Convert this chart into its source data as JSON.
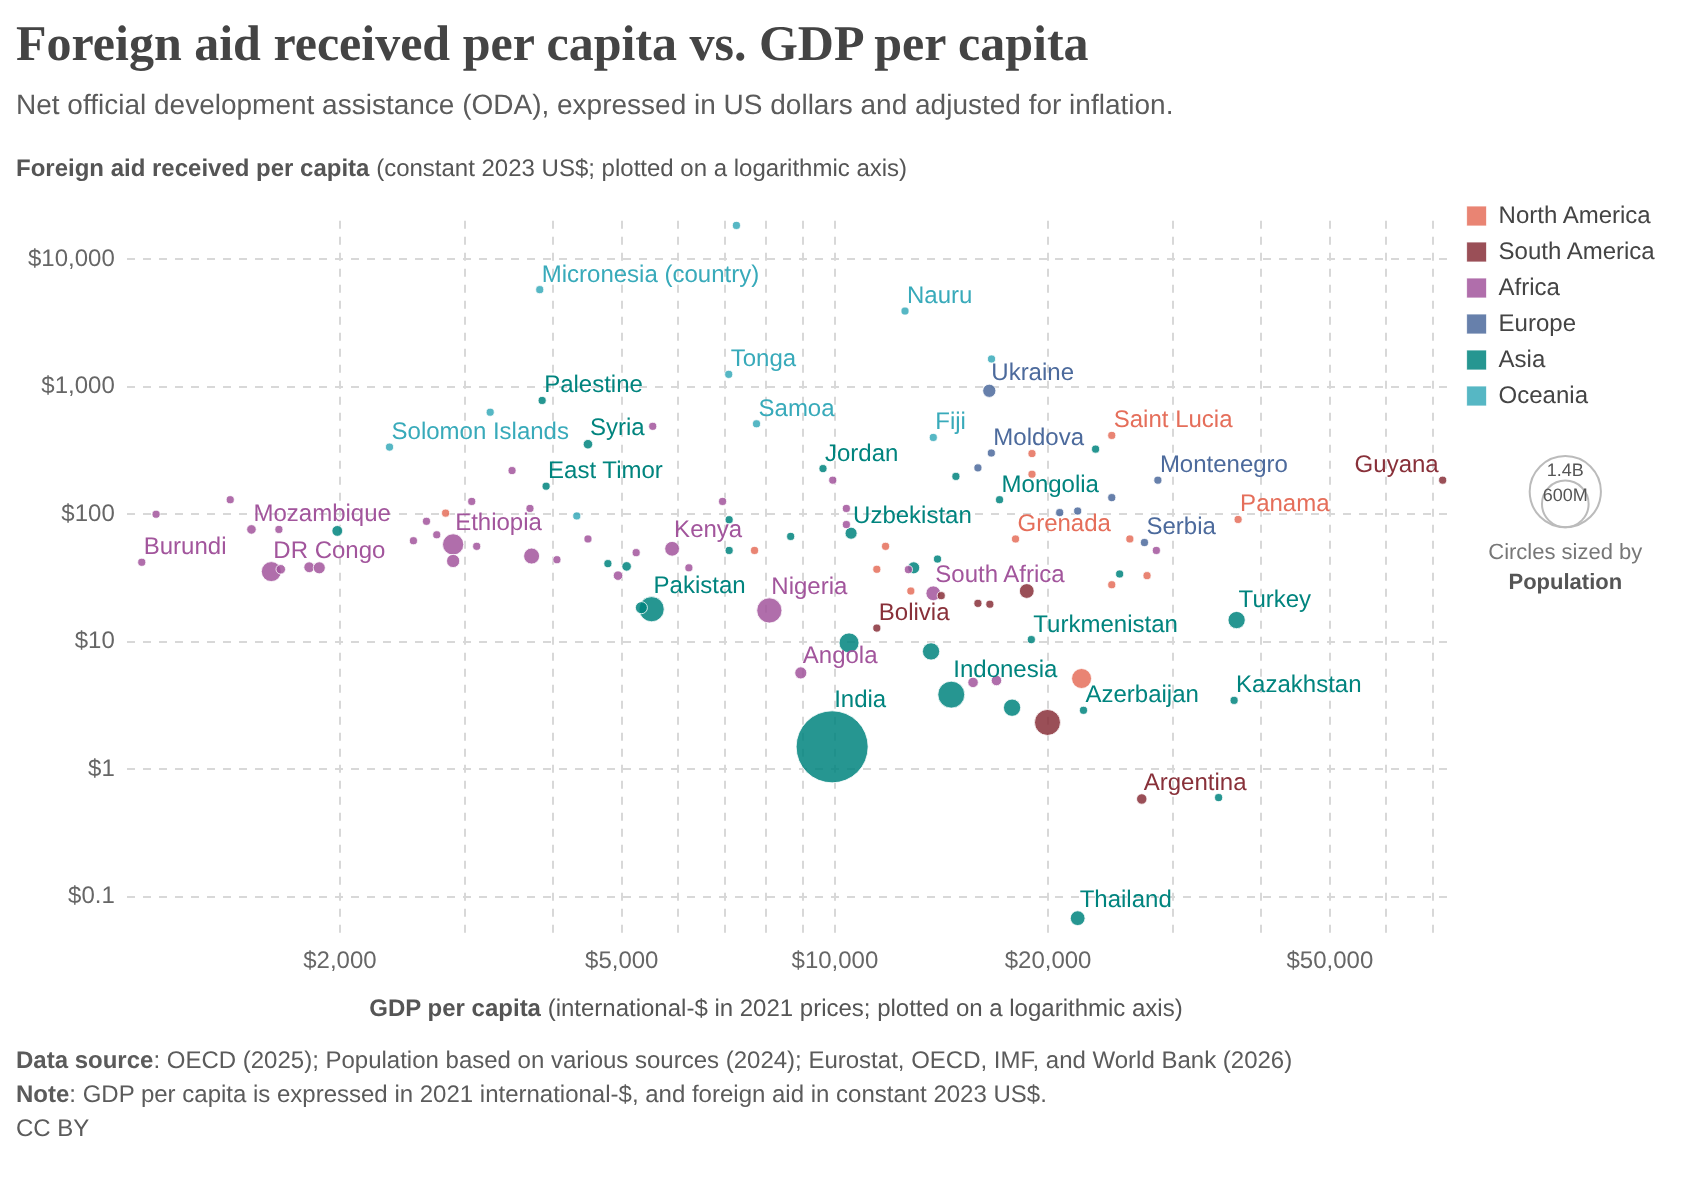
{
  "chart_data": {
    "type": "bubble",
    "title": "Foreign aid received per capita vs. GDP per capita",
    "subtitle": "Net official development assistance (ODA), expressed in US dollars and adjusted for inflation.",
    "ylabel": "Foreign aid received per capita (constant 2023 US$; plotted on a logarithmic axis)",
    "xlabel": "GDP per capita (international-$ in 2021 prices; plotted on a logarithmic axis)",
    "log": "xy",
    "grid": true,
    "legend": "right",
    "xlim": [
      1000,
      75000
    ],
    "ylim": [
      0.05,
      20000
    ],
    "xticks": [
      {
        "value": 2000,
        "label": "$2,000"
      },
      {
        "value": 3000,
        "label": null
      },
      {
        "value": 4000,
        "label": null
      },
      {
        "value": 5000,
        "label": "$5,000"
      },
      {
        "value": 6000,
        "label": null
      },
      {
        "value": 7000,
        "label": null
      },
      {
        "value": 8000,
        "label": null
      },
      {
        "value": 9000,
        "label": null
      },
      {
        "value": 10000,
        "label": "$10,000"
      },
      {
        "value": 20000,
        "label": "$20,000"
      },
      {
        "value": 30000,
        "label": null
      },
      {
        "value": 40000,
        "label": null
      },
      {
        "value": 50000,
        "label": "$50,000"
      },
      {
        "value": 60000,
        "label": null
      },
      {
        "value": 70000,
        "label": null
      }
    ],
    "yticks": [
      {
        "value": 0.1,
        "label": "$0.1"
      },
      {
        "value": 1,
        "label": "$1"
      },
      {
        "value": 10,
        "label": "$10"
      },
      {
        "value": 100,
        "label": "$100"
      },
      {
        "value": 1000,
        "label": "$1,000"
      },
      {
        "value": 10000,
        "label": "$10,000"
      }
    ],
    "size_legend": [
      {
        "value": 1400,
        "label": "1.4B"
      },
      {
        "value": 600,
        "label": "600M"
      }
    ],
    "series": [
      {
        "name": "North America",
        "color": "#e56e5a",
        "x": [
          2820,
          7700,
          18980,
          18980,
          24600,
          17990,
          26090,
          37100,
          27590,
          24600,
          11790,
          11460,
          12800,
          22300
        ],
        "values": [
          102,
          52,
          299,
          206,
          415,
          64,
          64,
          91,
          33,
          28,
          56,
          37,
          25,
          5.15
        ],
        "sizes": [
          18,
          18,
          18,
          18,
          18,
          18,
          18,
          18,
          18,
          18,
          18,
          18,
          18,
          110
        ]
      },
      {
        "name": "South America",
        "color": "#883039",
        "x": [
          72150,
          14130,
          15920,
          16550,
          18660,
          11460,
          19960,
          27120
        ],
        "values": [
          185,
          23,
          20,
          19.7,
          25,
          12.8,
          2.33,
          0.585
        ],
        "sizes": [
          18,
          18,
          18,
          18,
          60,
          18,
          186,
          30
        ]
      },
      {
        "name": "Africa",
        "color": "#a2559c",
        "x": [
          1100,
          1400,
          1050,
          1500,
          1640,
          1600,
          1650,
          1810,
          1870,
          2540,
          2650,
          2740,
          2890,
          2890,
          3070,
          3120,
          3710,
          3730,
          4050,
          4480,
          4940,
          5240,
          5890,
          6220,
          6940,
          5530,
          3500,
          8080,
          9930,
          10380,
          10380,
          12700,
          13770,
          8950,
          15670,
          16910,
          28440
        ],
        "values": [
          100,
          130,
          42,
          76,
          76,
          35.5,
          37,
          38.4,
          38,
          62,
          88,
          69,
          58,
          43,
          126,
          56,
          111,
          47,
          44,
          64,
          33,
          50,
          53.6,
          38,
          126,
          489,
          220,
          17.6,
          185,
          111,
          83,
          36.8,
          24,
          5.7,
          4.8,
          4.97,
          52
        ],
        "sizes": [
          18,
          18,
          18,
          25,
          18,
          110,
          25,
          32,
          40,
          18,
          18,
          18,
          124,
          48,
          18,
          18,
          18,
          70,
          18,
          18,
          25,
          18,
          60,
          18,
          18,
          18,
          18,
          175,
          18,
          18,
          18,
          18,
          60,
          40,
          30,
          30,
          18
        ]
      },
      {
        "name": "Europe",
        "color": "#4c6a9c",
        "x": [
          15920,
          16630,
          16520,
          28580,
          24600,
          20770,
          22020,
          27360
        ],
        "values": [
          231,
          302,
          929,
          185,
          135,
          103,
          106,
          60
        ],
        "sizes": [
          18,
          18,
          48,
          18,
          18,
          18,
          18,
          18
        ]
      },
      {
        "name": "Asia",
        "color": "#00847e",
        "x": [
          3860,
          4480,
          3910,
          1983,
          4780,
          5080,
          5510,
          5330,
          7090,
          7090,
          8660,
          9620,
          10540,
          14820,
          17080,
          23340,
          25240,
          13960,
          12920,
          18940,
          36920,
          10470,
          13670,
          14600,
          17790,
          22440,
          36620,
          9910,
          34820,
          22020
        ],
        "values": [
          780,
          354,
          166,
          74,
          41,
          39,
          18,
          18.5,
          90.6,
          52,
          67,
          228,
          71,
          198,
          130,
          324,
          34,
          44.5,
          38,
          10.4,
          14.8,
          9.8,
          8.4,
          3.85,
          3.04,
          2.9,
          3.47,
          1.5,
          0.6,
          0.068
        ],
        "sizes": [
          18,
          25,
          18,
          32,
          18,
          25,
          175,
          40,
          18,
          18,
          18,
          18,
          40,
          18,
          18,
          18,
          18,
          18,
          40,
          18,
          82,
          110,
          82,
          200,
          82,
          18,
          18,
          1430,
          18,
          60
        ]
      },
      {
        "name": "Oceania",
        "color": "#38aaba",
        "x": [
          7260,
          3830,
          7080,
          3260,
          7750,
          2350,
          12560,
          13770,
          16640,
          4320
        ],
        "values": [
          18400,
          5770,
          1250,
          631,
          512,
          336,
          3920,
          400,
          1650,
          97
        ],
        "sizes": [
          18,
          18,
          18,
          18,
          18,
          18,
          18,
          18,
          18,
          18
        ]
      }
    ],
    "annotations": [
      "Circles sized by",
      "Population",
      "Data source: OECD (2025); Population based on various sources (2024); Eurostat, OECD, IMF, and World Bank (2026)",
      "Note: GDP per capita is expressed in 2021 international-$, and foreign aid in constant 2023 US$.",
      "CC BY",
      {
        "text": "Saint Lucia",
        "x": 24600,
        "y": 415
      },
      {
        "text": "Grenada",
        "x": 17990,
        "y": 64
      },
      {
        "text": "Panama",
        "x": 37100,
        "y": 91
      },
      {
        "text": "Guyana",
        "x": 72150,
        "y": 185
      },
      {
        "text": "Bolivia",
        "x": 11460,
        "y": 12.8
      },
      {
        "text": "Argentina",
        "x": 27120,
        "y": 0.585
      },
      {
        "text": "Burundi",
        "x": 1050,
        "y": 42
      },
      {
        "text": "Mozambique",
        "x": 1500,
        "y": 76
      },
      {
        "text": "DR Congo",
        "x": 1600,
        "y": 35.5
      },
      {
        "text": "Ethiopia",
        "x": 2890,
        "y": 58
      },
      {
        "text": "Kenya",
        "x": 5890,
        "y": 53.6
      },
      {
        "text": "Nigeria",
        "x": 8080,
        "y": 17.6
      },
      {
        "text": "South Africa",
        "x": 13770,
        "y": 24
      },
      {
        "text": "Angola",
        "x": 8950,
        "y": 5.7
      },
      {
        "text": "Moldova",
        "x": 16630,
        "y": 302
      },
      {
        "text": "Ukraine",
        "x": 16520,
        "y": 929
      },
      {
        "text": "Montenegro",
        "x": 28580,
        "y": 185
      },
      {
        "text": "Serbia",
        "x": 27360,
        "y": 60
      },
      {
        "text": "Palestine",
        "x": 3860,
        "y": 780
      },
      {
        "text": "Syria",
        "x": 4480,
        "y": 354
      },
      {
        "text": "East Timor",
        "x": 3910,
        "y": 166
      },
      {
        "text": "Pakistan",
        "x": 5510,
        "y": 18
      },
      {
        "text": "Jordan",
        "x": 9620,
        "y": 228
      },
      {
        "text": "Uzbekistan",
        "x": 10540,
        "y": 71
      },
      {
        "text": "Mongolia",
        "x": 17080,
        "y": 130
      },
      {
        "text": "Turkmenistan",
        "x": 18940,
        "y": 10.4
      },
      {
        "text": "Turkey",
        "x": 36920,
        "y": 14.8
      },
      {
        "text": "Indonesia",
        "x": 14600,
        "y": 3.85
      },
      {
        "text": "Azerbaijan",
        "x": 22440,
        "y": 2.9
      },
      {
        "text": "Kazakhstan",
        "x": 36620,
        "y": 3.47
      },
      {
        "text": "India",
        "x": 9910,
        "y": 1.5
      },
      {
        "text": "Thailand",
        "x": 22020,
        "y": 0.068
      },
      {
        "text": "Micronesia (country)",
        "x": 3830,
        "y": 5770
      },
      {
        "text": "Tonga",
        "x": 7080,
        "y": 1250
      },
      {
        "text": "Samoa",
        "x": 7750,
        "y": 512
      },
      {
        "text": "Solomon Islands",
        "x": 2350,
        "y": 336
      },
      {
        "text": "Nauru",
        "x": 12560,
        "y": 3920
      },
      {
        "text": "Fiji",
        "x": 13770,
        "y": 400
      }
    ]
  }
}
